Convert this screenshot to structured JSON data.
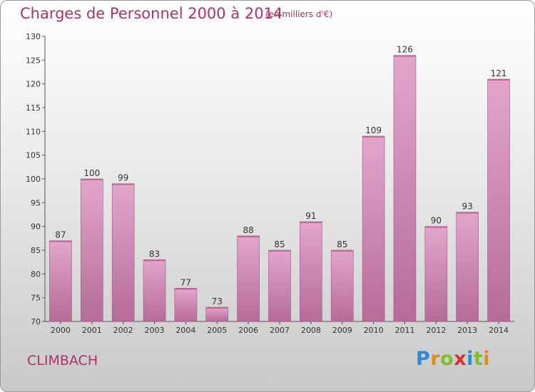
{
  "chart_data": {
    "type": "bar",
    "title": "Charges de Personnel 2000 à 2014",
    "subtitle": "(en milliers d'€)",
    "categories": [
      "2000",
      "2001",
      "2002",
      "2003",
      "2004",
      "2005",
      "2006",
      "2007",
      "2008",
      "2009",
      "2010",
      "2011",
      "2012",
      "2013",
      "2014"
    ],
    "values": [
      87,
      100,
      99,
      83,
      77,
      73,
      88,
      85,
      91,
      85,
      109,
      126,
      90,
      93,
      121
    ],
    "ylim": [
      70,
      130
    ],
    "yticks": [
      70,
      75,
      80,
      85,
      90,
      95,
      100,
      105,
      110,
      115,
      120,
      125,
      130
    ],
    "grid": false,
    "bar_color": "#d98fba"
  },
  "place": "CLIMBACH",
  "logo": {
    "letters": [
      "P",
      "r",
      "o",
      "x",
      "i",
      "t",
      "i"
    ],
    "colors": [
      "#2e8bd1",
      "#e58a1f",
      "#7fbf2a",
      "#d8302f",
      "#2e8bd1",
      "#7fbf2a",
      "#e58a1f"
    ]
  }
}
